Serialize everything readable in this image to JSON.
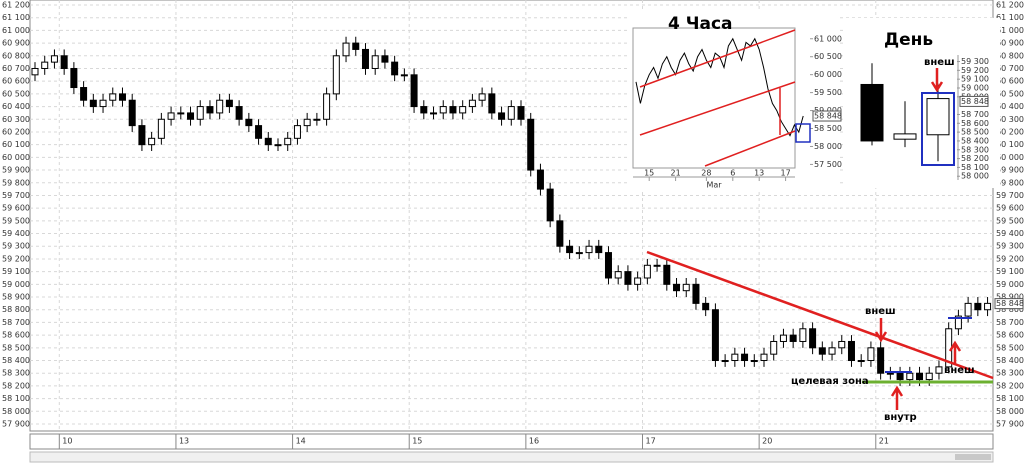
{
  "chart_data": [
    {
      "type": "candlestick",
      "candles": [
        [
          60650,
          60750,
          60600,
          60700
        ],
        [
          60700,
          60800,
          60650,
          60750
        ],
        [
          60750,
          60850,
          60700,
          60800
        ],
        [
          60800,
          60850,
          60650,
          60700
        ],
        [
          60700,
          60750,
          60500,
          60550
        ],
        [
          60550,
          60600,
          60400,
          60450
        ],
        [
          60450,
          60500,
          60350,
          60400
        ],
        [
          60400,
          60500,
          60350,
          60450
        ],
        [
          60450,
          60550,
          60400,
          60500
        ],
        [
          60500,
          60550,
          60400,
          60450
        ],
        [
          60450,
          60500,
          60200,
          60250
        ],
        [
          60250,
          60300,
          60050,
          60100
        ],
        [
          60100,
          60200,
          60050,
          60150
        ],
        [
          60150,
          60350,
          60100,
          60300
        ],
        [
          60300,
          60400,
          60250,
          60350
        ],
        [
          60350,
          60400,
          60300,
          60350
        ],
        [
          60350,
          60400,
          60250,
          60300
        ],
        [
          60300,
          60450,
          60250,
          60400
        ],
        [
          60400,
          60450,
          60300,
          60350
        ],
        [
          60350,
          60500,
          60300,
          60450
        ],
        [
          60450,
          60500,
          60350,
          60400
        ],
        [
          60400,
          60450,
          60250,
          60300
        ],
        [
          60300,
          60350,
          60200,
          60250
        ],
        [
          60250,
          60300,
          60100,
          60150
        ],
        [
          60150,
          60200,
          60050,
          60100
        ],
        [
          60100,
          60150,
          60050,
          60100
        ],
        [
          60100,
          60200,
          60050,
          60150
        ],
        [
          60150,
          60300,
          60100,
          60250
        ],
        [
          60250,
          60350,
          60200,
          60300
        ],
        [
          60300,
          60350,
          60250,
          60300
        ],
        [
          60300,
          60550,
          60250,
          60500
        ],
        [
          60500,
          60850,
          60450,
          60800
        ],
        [
          60800,
          60950,
          60750,
          60900
        ],
        [
          60900,
          60950,
          60800,
          60850
        ],
        [
          60850,
          60900,
          60650,
          60700
        ],
        [
          60700,
          60850,
          60650,
          60800
        ],
        [
          60800,
          60850,
          60700,
          60750
        ],
        [
          60750,
          60800,
          60600,
          60650
        ],
        [
          60650,
          60700,
          60600,
          60650
        ],
        [
          60650,
          60700,
          60350,
          60400
        ],
        [
          60400,
          60450,
          60300,
          60350
        ],
        [
          60350,
          60400,
          60300,
          60350
        ],
        [
          60350,
          60450,
          60300,
          60400
        ],
        [
          60400,
          60450,
          60300,
          60350
        ],
        [
          60350,
          60450,
          60300,
          60400
        ],
        [
          60400,
          60500,
          60350,
          60450
        ],
        [
          60450,
          60550,
          60400,
          60500
        ],
        [
          60500,
          60550,
          60300,
          60350
        ],
        [
          60350,
          60400,
          60250,
          60300
        ],
        [
          60300,
          60450,
          60250,
          60400
        ],
        [
          60400,
          60450,
          60250,
          60300
        ],
        [
          60300,
          60350,
          59850,
          59900
        ],
        [
          59900,
          59950,
          59700,
          59750
        ],
        [
          59750,
          59800,
          59450,
          59500
        ],
        [
          59500,
          59550,
          59250,
          59300
        ],
        [
          59300,
          59350,
          59200,
          59250
        ],
        [
          59250,
          59300,
          59200,
          59250
        ],
        [
          59250,
          59350,
          59200,
          59300
        ],
        [
          59300,
          59350,
          59200,
          59250
        ],
        [
          59250,
          59300,
          59000,
          59050
        ],
        [
          59050,
          59150,
          59000,
          59100
        ],
        [
          59100,
          59150,
          58950,
          59000
        ],
        [
          59000,
          59100,
          58950,
          59050
        ],
        [
          59050,
          59200,
          59000,
          59150
        ],
        [
          59150,
          59200,
          59100,
          59150
        ],
        [
          59150,
          59200,
          58950,
          59000
        ],
        [
          59000,
          59050,
          58900,
          58950
        ],
        [
          58950,
          59050,
          58900,
          59000
        ],
        [
          59000,
          59050,
          58800,
          58850
        ],
        [
          58850,
          58900,
          58750,
          58800
        ],
        [
          58800,
          58850,
          58350,
          58400
        ],
        [
          58400,
          58450,
          58350,
          58400
        ],
        [
          58400,
          58500,
          58350,
          58450
        ],
        [
          58450,
          58500,
          58350,
          58400
        ],
        [
          58400,
          58450,
          58350,
          58400
        ],
        [
          58400,
          58500,
          58350,
          58450
        ],
        [
          58450,
          58600,
          58400,
          58550
        ],
        [
          58550,
          58650,
          58500,
          58600
        ],
        [
          58600,
          58650,
          58500,
          58550
        ],
        [
          58550,
          58700,
          58500,
          58650
        ],
        [
          58650,
          58700,
          58450,
          58500
        ],
        [
          58500,
          58550,
          58400,
          58450
        ],
        [
          58450,
          58550,
          58400,
          58500
        ],
        [
          58500,
          58600,
          58450,
          58550
        ],
        [
          58550,
          58600,
          58350,
          58400
        ],
        [
          58400,
          58450,
          58350,
          58400
        ],
        [
          58400,
          58550,
          58350,
          58500
        ],
        [
          58500,
          58550,
          58250,
          58300
        ],
        [
          58300,
          58350,
          58250,
          58300
        ],
        [
          58300,
          58350,
          58200,
          58250
        ],
        [
          58250,
          58350,
          58200,
          58300
        ],
        [
          58300,
          58350,
          58200,
          58250
        ],
        [
          58250,
          58350,
          58200,
          58300
        ],
        [
          58300,
          58400,
          58250,
          58350
        ],
        [
          58350,
          58700,
          58300,
          58650
        ],
        [
          58650,
          58800,
          58600,
          58750
        ],
        [
          58750,
          58900,
          58700,
          58850
        ],
        [
          58850,
          58900,
          58750,
          58800
        ],
        [
          58800,
          58900,
          58750,
          58850
        ]
      ],
      "xticks": [
        {
          "value": 3,
          "label": "10"
        },
        {
          "value": 15,
          "label": "13"
        },
        {
          "value": 27,
          "label": "14"
        },
        {
          "value": 39,
          "label": "15"
        },
        {
          "value": 51,
          "label": "16"
        },
        {
          "value": 63,
          "label": "17"
        },
        {
          "value": 75,
          "label": "20"
        },
        {
          "value": 87,
          "label": "21"
        }
      ],
      "ylim": [
        57900,
        61200
      ],
      "yticks": [
        {
          "value": 61200,
          "label": "61 200"
        },
        {
          "value": 61100,
          "label": "61 100"
        },
        {
          "value": 61000,
          "label": "61 000"
        },
        {
          "value": 60900,
          "label": "60 900"
        },
        {
          "value": 60800,
          "label": "60 800"
        },
        {
          "value": 60700,
          "label": "60 700"
        },
        {
          "value": 60600,
          "label": "60 600"
        },
        {
          "value": 60500,
          "label": "60 500"
        },
        {
          "value": 60400,
          "label": "60 400"
        },
        {
          "value": 60300,
          "label": "60 300"
        },
        {
          "value": 60200,
          "label": "60 200"
        },
        {
          "value": 60100,
          "label": "60 100"
        },
        {
          "value": 60000,
          "label": "60 000"
        },
        {
          "value": 59900,
          "label": "59 900"
        },
        {
          "value": 59800,
          "label": "59 800"
        },
        {
          "value": 59700,
          "label": "59 700"
        },
        {
          "value": 59600,
          "label": "59 600"
        },
        {
          "value": 59500,
          "label": "59 500"
        },
        {
          "value": 59400,
          "label": "59 400"
        },
        {
          "value": 59300,
          "label": "59 300"
        },
        {
          "value": 59200,
          "label": "59 200"
        },
        {
          "value": 59100,
          "label": "59 100"
        },
        {
          "value": 59000,
          "label": "59 000"
        },
        {
          "value": 58900,
          "label": "58 900"
        },
        {
          "value": 58800,
          "label": "58 800"
        },
        {
          "value": 58700,
          "label": "58 700"
        },
        {
          "value": 58600,
          "label": "58 600"
        },
        {
          "value": 58500,
          "label": "58 500"
        },
        {
          "value": 58400,
          "label": "58 400"
        },
        {
          "value": 58300,
          "label": "58 300"
        },
        {
          "value": 58200,
          "label": "58 200"
        },
        {
          "value": 58100,
          "label": "58 100"
        },
        {
          "value": 58000,
          "label": "58 000"
        },
        {
          "value": 57900,
          "label": "57 900"
        }
      ],
      "last_price": {
        "value": 58848,
        "label": "58 848"
      },
      "grid": true,
      "annotations": [
        "внеш",
        "внеш",
        "внутр",
        "целевая зона"
      ]
    },
    {
      "type": "line",
      "title": "4 Часа",
      "color": "#000000",
      "values": [
        59800,
        59200,
        59700,
        60000,
        60200,
        59900,
        60300,
        60500,
        60200,
        60000,
        60400,
        60600,
        60300,
        60100,
        60500,
        60700,
        60400,
        60200,
        60600,
        60500,
        60200,
        60800,
        61000,
        60700,
        60400,
        60900,
        60800,
        61000,
        60700,
        60200,
        59600,
        59200,
        59000,
        58700,
        58500,
        58300,
        58600,
        58400,
        58848
      ],
      "ylim": [
        57400,
        61300
      ],
      "yticks": [
        {
          "value": 61000,
          "label": "61 000"
        },
        {
          "value": 60500,
          "label": "60 500"
        },
        {
          "value": 60000,
          "label": "60 000"
        },
        {
          "value": 59500,
          "label": "59 500"
        },
        {
          "value": 59000,
          "label": "59 000"
        },
        {
          "value": 58500,
          "label": "58 500"
        },
        {
          "value": 58000,
          "label": "58 000"
        },
        {
          "value": 57500,
          "label": "57 500"
        }
      ],
      "xticks": [
        {
          "value": 3,
          "label": "15"
        },
        {
          "value": 9,
          "label": "21"
        },
        {
          "value": 16,
          "label": "28"
        },
        {
          "value": 22,
          "label": "6"
        },
        {
          "value": 28,
          "label": "13"
        },
        {
          "value": 34,
          "label": "17"
        }
      ],
      "month_label": "Mar",
      "last_price": {
        "value": 58848,
        "label": "58 848"
      }
    },
    {
      "type": "candlestick",
      "title": "День",
      "candles": [
        [
          59040,
          59280,
          58350,
          58400
        ],
        [
          58420,
          58850,
          58330,
          58480
        ],
        [
          58470,
          59050,
          58170,
          58880
        ]
      ],
      "ylim": [
        57980,
        59340
      ],
      "yticks": [
        {
          "value": 59300,
          "label": "59 300"
        },
        {
          "value": 59200,
          "label": "59 200"
        },
        {
          "value": 59100,
          "label": "59 100"
        },
        {
          "value": 59000,
          "label": "59 000"
        },
        {
          "value": 58900,
          "label": "58 900"
        },
        {
          "value": 58700,
          "label": "58 700"
        },
        {
          "value": 58600,
          "label": "58 600"
        },
        {
          "value": 58500,
          "label": "58 500"
        },
        {
          "value": 58400,
          "label": "58 400"
        },
        {
          "value": 58300,
          "label": "58 300"
        },
        {
          "value": 58200,
          "label": "58 200"
        },
        {
          "value": 58100,
          "label": "58 100"
        },
        {
          "value": 58000,
          "label": "58 000"
        }
      ],
      "last_price": {
        "value": 58848,
        "label": "58 848"
      },
      "annotations": [
        "внеш"
      ]
    }
  ]
}
